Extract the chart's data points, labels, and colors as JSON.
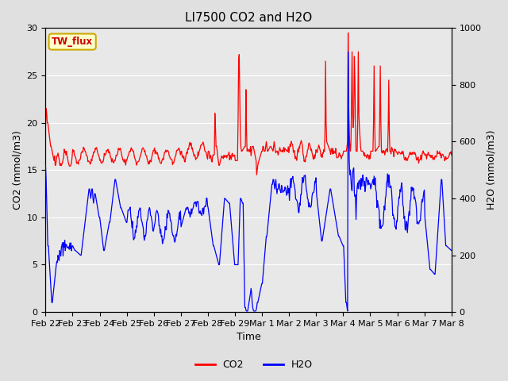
{
  "title": "LI7500 CO2 and H2O",
  "xlabel": "Time",
  "ylabel_left": "CO2 (mmol/m3)",
  "ylabel_right": "H2O (mmol/m3)",
  "ylim_left": [
    0,
    30
  ],
  "ylim_right": [
    0,
    1000
  ],
  "xtick_labels": [
    "Feb 22",
    "Feb 23",
    "Feb 24",
    "Feb 25",
    "Feb 26",
    "Feb 27",
    "Feb 28",
    "Feb 29",
    "Mar 1",
    "Mar 2",
    "Mar 3",
    "Mar 4",
    "Mar 5",
    "Mar 6",
    "Mar 7",
    "Mar 8"
  ],
  "fig_bg_color": "#e0e0e0",
  "plot_bg_color": "#e8e8e8",
  "co2_color": "#ff0000",
  "h2o_color": "#0000ff",
  "legend_box_facecolor": "#ffffcc",
  "legend_box_edgecolor": "#ccaa00",
  "legend_box_text_color": "#cc0000",
  "legend_box_label": "TW_flux",
  "title_fontsize": 11,
  "axis_label_fontsize": 9,
  "tick_fontsize": 8,
  "grid_color": "#ffffff",
  "n_days": 15,
  "n_points": 720
}
